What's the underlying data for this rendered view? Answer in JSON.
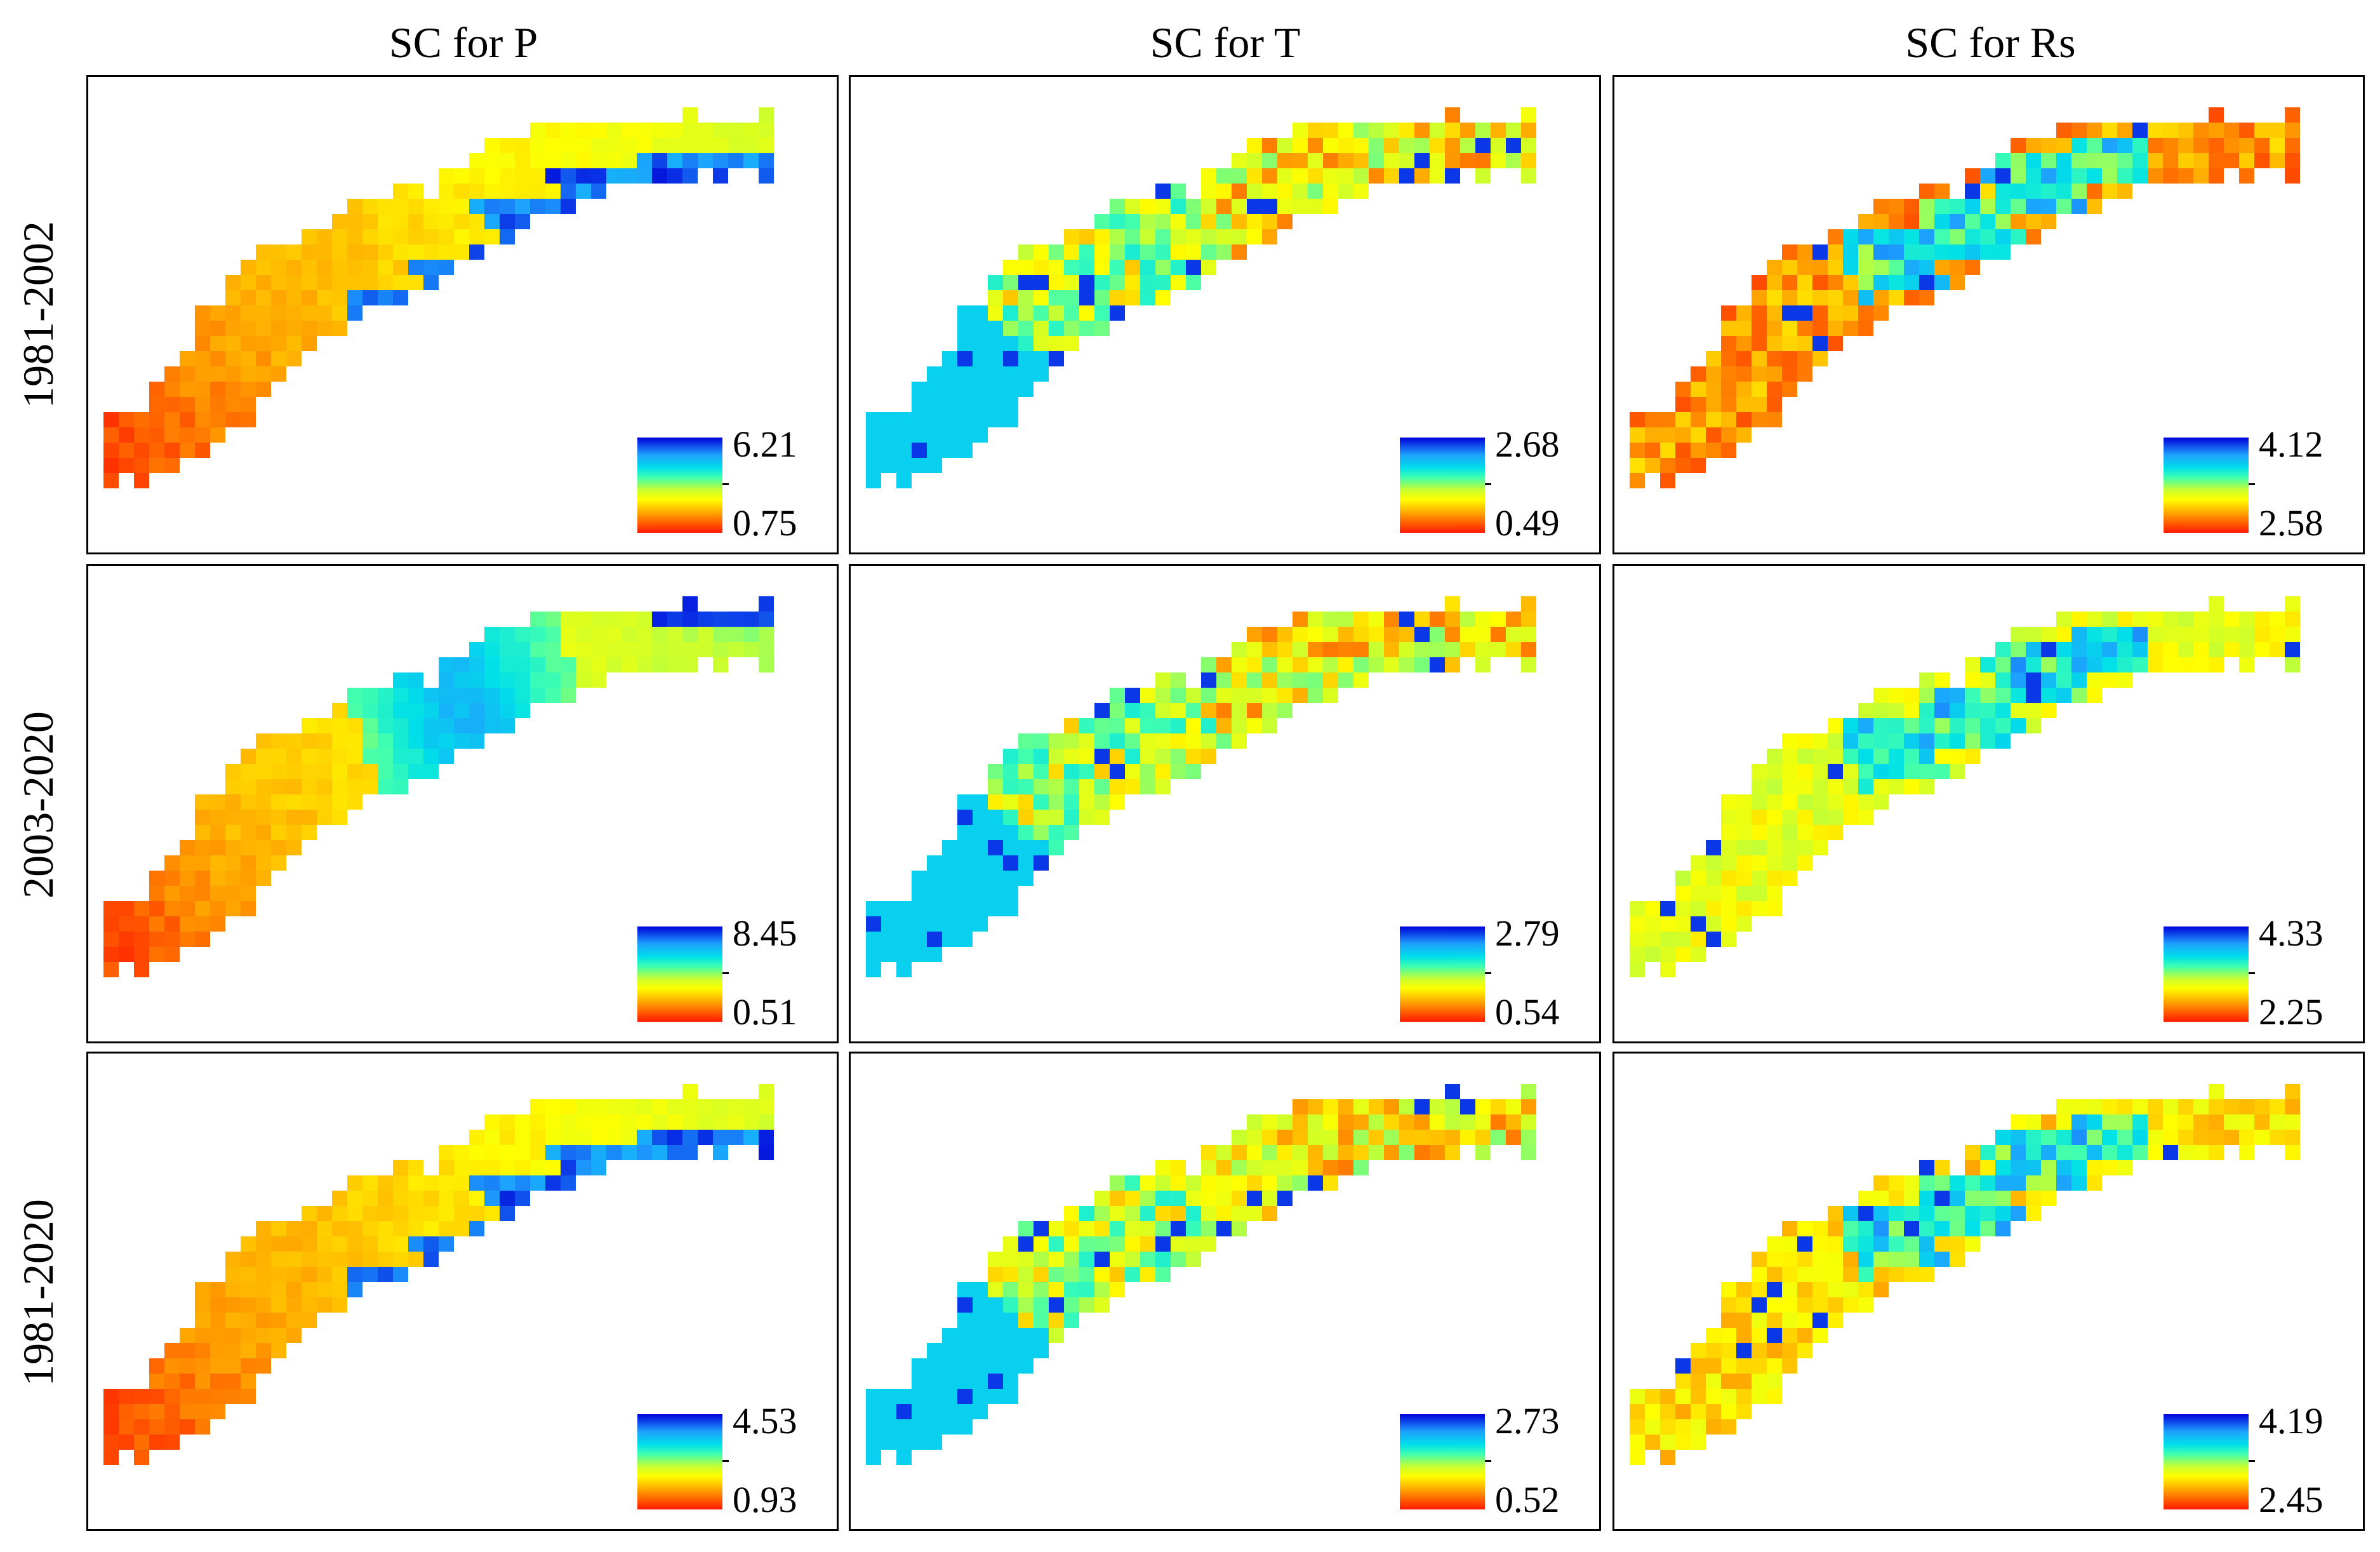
{
  "columns": [
    {
      "title": "SC for P"
    },
    {
      "title": "SC for T"
    },
    {
      "title": "SC for Rs"
    }
  ],
  "rows": [
    {
      "title": "1981-2002"
    },
    {
      "title": "2003-2020"
    },
    {
      "title": "1981-2020"
    }
  ],
  "panels": [
    {
      "variable": "P",
      "period": "1981-2002",
      "legend_max": "6.21",
      "legend_min": "0.75",
      "pattern": "smooth-red-southwest-blue-northeast"
    },
    {
      "variable": "T",
      "period": "1981-2002",
      "legend_max": "2.68",
      "legend_min": "0.49",
      "pattern": "noisy-cyan-southwest-yellow-northeast"
    },
    {
      "variable": "Rs",
      "period": "1981-2002",
      "legend_max": "4.12",
      "legend_min": "2.58",
      "pattern": "noisy-orange-with-blue-center"
    },
    {
      "variable": "P",
      "period": "2003-2020",
      "legend_max": "8.45",
      "legend_min": "0.51",
      "pattern": "smooth-red-southwest-cyan-center"
    },
    {
      "variable": "T",
      "period": "2003-2020",
      "legend_max": "2.79",
      "legend_min": "0.54",
      "pattern": "noisy-cyan-southwest-yellow-northeast"
    },
    {
      "variable": "Rs",
      "period": "2003-2020",
      "legend_max": "4.33",
      "legend_min": "2.25",
      "pattern": "noisy-yellow-with-blue-center"
    },
    {
      "variable": "P",
      "period": "1981-2020",
      "legend_max": "4.53",
      "legend_min": "0.93",
      "pattern": "smooth-red-southwest-blue-northeast"
    },
    {
      "variable": "T",
      "period": "1981-2020",
      "legend_max": "2.73",
      "legend_min": "0.52",
      "pattern": "noisy-cyan-southwest-yellow-northeast"
    },
    {
      "variable": "Rs",
      "period": "1981-2020",
      "legend_max": "4.19",
      "legend_min": "2.45",
      "pattern": "noisy-yellow-orange-with-blue-center"
    }
  ],
  "colormap": [
    "#0000d8",
    "#1ea0ff",
    "#00e0e8",
    "#40ffb0",
    "#c8ff30",
    "#ffff00",
    "#ffa000",
    "#ff1a00"
  ]
}
